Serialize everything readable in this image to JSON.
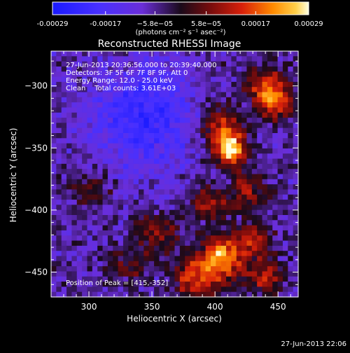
{
  "chart_data": {
    "type": "heatmap",
    "title": "Reconstructed RHESSI Image",
    "xlabel": "Heliocentric X (arcsec)",
    "ylabel": "Heliocentric Y (arcsec)",
    "xlim": [
      270,
      466
    ],
    "ylim": [
      -470,
      -272
    ],
    "x_ticks": [
      300,
      350,
      400,
      450
    ],
    "y_ticks": [
      -300,
      -350,
      -400,
      -450
    ],
    "colorbar": {
      "ticks": [
        "-0.00029",
        "-0.00017",
        "−5.8e−05",
        "5.8e−05",
        "0.00017",
        "0.00029"
      ],
      "tick_values": [
        -0.00029,
        -0.00017,
        -5.8e-05,
        5.8e-05,
        0.00017,
        0.00029
      ],
      "units_label": "(photons cm⁻² s⁻¹ asec⁻²)",
      "range": [
        -0.00029,
        0.00029
      ]
    },
    "annotations": {
      "time_range": "27-Jun-2013 20:36:56.000 to 20:39:40.000",
      "detectors": "Detectors: 3F 5F 6F 7F 8F 9F, Att 0",
      "energy_range": "Energy Range: 12.0 - 25.0 keV",
      "clean": "Clean    Total counts: 3.61E+03",
      "peak_position": "Position of Peak = [415,-352]"
    },
    "sources": [
      {
        "x": 412,
        "y": -352,
        "sigma": 9,
        "amp": 1.0
      },
      {
        "x": 405,
        "y": -332,
        "sigma": 12,
        "amp": 0.55
      },
      {
        "x": 448,
        "y": -312,
        "sigma": 10,
        "amp": 0.6
      },
      {
        "x": 440,
        "y": -300,
        "sigma": 12,
        "amp": 0.45
      },
      {
        "x": 405,
        "y": -438,
        "sigma": 12,
        "amp": 0.8
      },
      {
        "x": 385,
        "y": -455,
        "sigma": 12,
        "amp": 0.6
      },
      {
        "x": 430,
        "y": -425,
        "sigma": 10,
        "amp": 0.55
      },
      {
        "x": 440,
        "y": -455,
        "sigma": 10,
        "amp": 0.5
      },
      {
        "x": 395,
        "y": -395,
        "sigma": 10,
        "amp": 0.45
      },
      {
        "x": 425,
        "y": -385,
        "sigma": 10,
        "amp": 0.45
      },
      {
        "x": 300,
        "y": -385,
        "sigma": 10,
        "amp": 0.35
      },
      {
        "x": 355,
        "y": -420,
        "sigma": 12,
        "amp": 0.35
      },
      {
        "x": 330,
        "y": -445,
        "sigma": 10,
        "amp": 0.3
      }
    ],
    "negative_region": {
      "x": 345,
      "y": -325,
      "sigma": 28,
      "amp": -0.6
    }
  },
  "footer": {
    "timestamp": "27-Jun-2013 22:06"
  },
  "colors": {
    "background": "#000000",
    "foreground": "#ffffff"
  }
}
